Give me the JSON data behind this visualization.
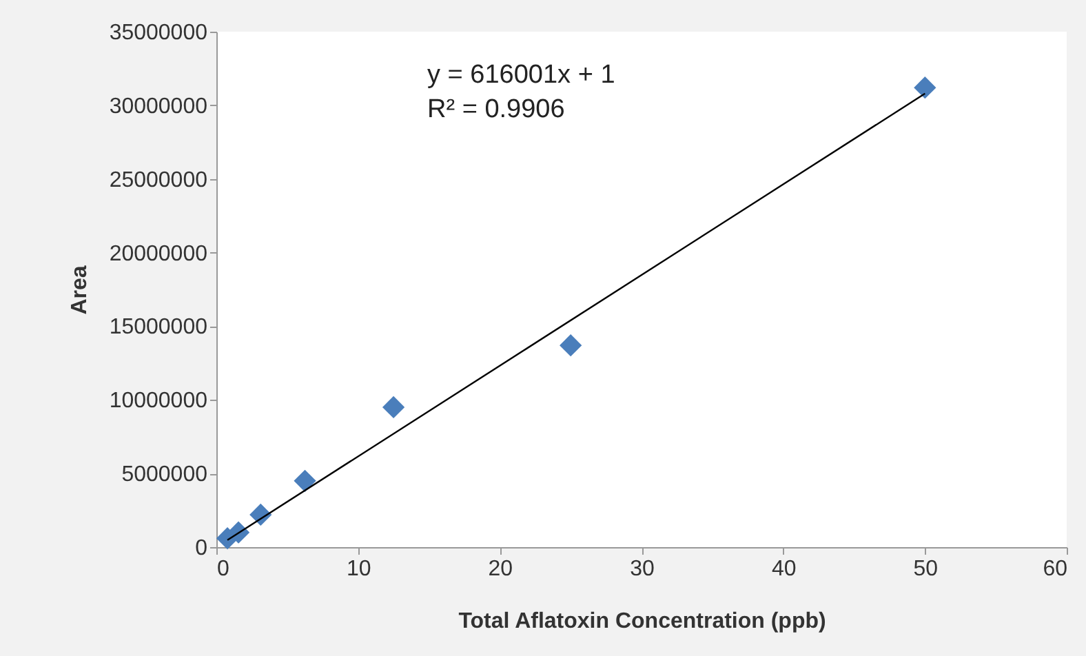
{
  "chart_data": {
    "type": "scatter",
    "xlabel": "Total Aflatoxin Concentration (ppb)",
    "ylabel": "Area",
    "xlim": [
      0,
      60
    ],
    "xticks": [
      0,
      10,
      20,
      30,
      40,
      50,
      60
    ],
    "ylim": [
      0,
      35000000
    ],
    "yticks": [
      0,
      5000000,
      10000000,
      15000000,
      20000000,
      25000000,
      30000000,
      35000000
    ],
    "grid": false,
    "series": [
      {
        "marker": "diamond",
        "color": "#4a7ebb",
        "x": [
          0.78,
          1.56,
          3.125,
          6.25,
          12.5,
          25,
          50
        ],
        "values": [
          600000,
          1000000,
          2200000,
          4500000,
          9500000,
          13700000,
          31200000
        ]
      },
      {
        "type": "line",
        "marker": "none",
        "color": "#000000",
        "x": [
          0.78,
          50
        ],
        "values": [
          480000,
          30800000
        ]
      }
    ],
    "annotations": [
      "y = 616001x + 1",
      "R² = 0.9906"
    ]
  }
}
